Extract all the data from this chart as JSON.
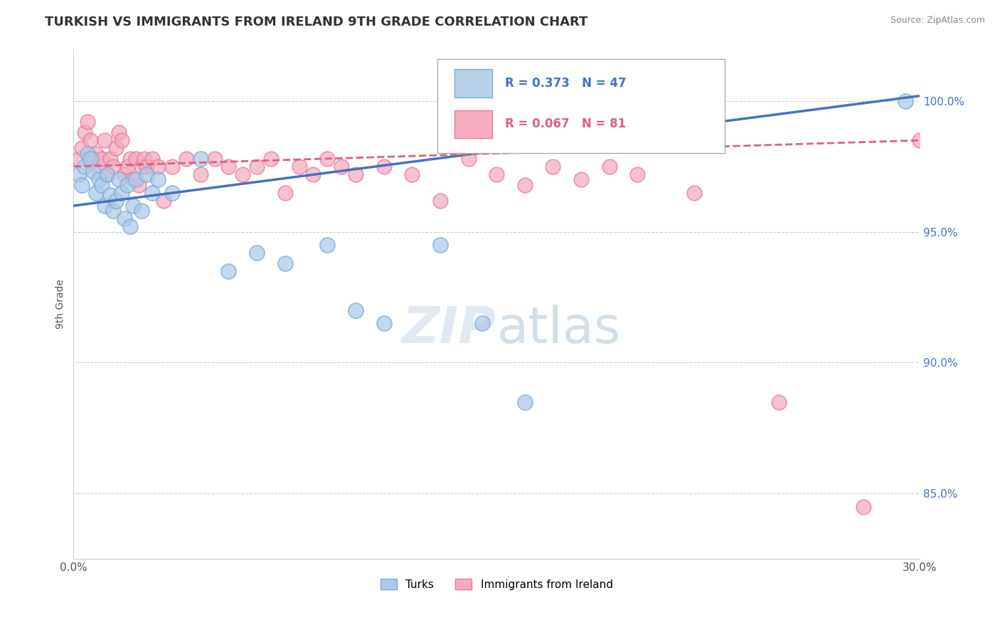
{
  "title": "TURKISH VS IMMIGRANTS FROM IRELAND 9TH GRADE CORRELATION CHART",
  "source": "Source: ZipAtlas.com",
  "ylabel": "9th Grade",
  "xmin": 0.0,
  "xmax": 30.0,
  "ymin": 82.5,
  "ymax": 102.0,
  "yticks": [
    85.0,
    90.0,
    95.0,
    100.0
  ],
  "ytick_labels": [
    "85.0%",
    "90.0%",
    "95.0%",
    "100.0%"
  ],
  "r_blue": 0.373,
  "n_blue": 47,
  "r_pink": 0.067,
  "n_pink": 81,
  "blue_color": "#adc8e8",
  "blue_edge": "#7aadd4",
  "pink_color": "#f5abbe",
  "pink_edge": "#e87898",
  "blue_line_color": "#4472c4",
  "pink_line_color": "#e06080",
  "legend_box_blue": "#b8d0ea",
  "legend_box_pink": "#f5abbe",
  "blue_x": [
    0.2,
    0.3,
    0.4,
    0.5,
    0.6,
    0.7,
    0.8,
    0.9,
    1.0,
    1.1,
    1.2,
    1.3,
    1.4,
    1.5,
    1.6,
    1.7,
    1.8,
    1.9,
    2.0,
    2.1,
    2.2,
    2.4,
    2.6,
    2.8,
    3.0,
    3.5,
    4.5,
    5.5,
    6.5,
    7.5,
    9.0,
    10.0,
    11.0,
    13.0,
    14.5,
    16.0,
    29.5
  ],
  "blue_y": [
    97.2,
    96.8,
    97.5,
    98.0,
    97.8,
    97.3,
    96.5,
    97.0,
    96.8,
    96.0,
    97.2,
    96.4,
    95.8,
    96.2,
    97.0,
    96.5,
    95.5,
    96.8,
    95.2,
    96.0,
    97.0,
    95.8,
    97.2,
    96.5,
    97.0,
    96.5,
    97.8,
    93.5,
    94.2,
    93.8,
    94.5,
    92.0,
    91.5,
    94.5,
    91.5,
    88.5,
    100.0
  ],
  "pink_x": [
    0.2,
    0.3,
    0.4,
    0.5,
    0.6,
    0.7,
    0.8,
    0.9,
    1.0,
    1.1,
    1.2,
    1.3,
    1.4,
    1.5,
    1.6,
    1.7,
    1.8,
    1.9,
    2.0,
    2.1,
    2.2,
    2.3,
    2.4,
    2.5,
    2.6,
    2.8,
    3.0,
    3.2,
    3.5,
    4.0,
    4.5,
    5.0,
    5.5,
    6.0,
    6.5,
    7.0,
    7.5,
    8.0,
    8.5,
    9.0,
    9.5,
    10.0,
    11.0,
    12.0,
    13.0,
    14.0,
    15.0,
    16.0,
    17.0,
    18.0,
    19.0,
    20.0,
    22.0,
    25.0,
    28.0,
    30.0
  ],
  "pink_y": [
    97.8,
    98.2,
    98.8,
    99.2,
    98.5,
    97.8,
    98.0,
    97.5,
    97.8,
    98.5,
    97.2,
    97.8,
    97.5,
    98.2,
    98.8,
    98.5,
    97.2,
    97.5,
    97.8,
    97.0,
    97.8,
    96.8,
    97.5,
    97.8,
    97.5,
    97.8,
    97.5,
    96.2,
    97.5,
    97.8,
    97.2,
    97.8,
    97.5,
    97.2,
    97.5,
    97.8,
    96.5,
    97.5,
    97.2,
    97.8,
    97.5,
    97.2,
    97.5,
    97.2,
    96.2,
    97.8,
    97.2,
    96.8,
    97.5,
    97.0,
    97.5,
    97.2,
    96.5,
    88.5,
    84.5,
    98.5
  ]
}
